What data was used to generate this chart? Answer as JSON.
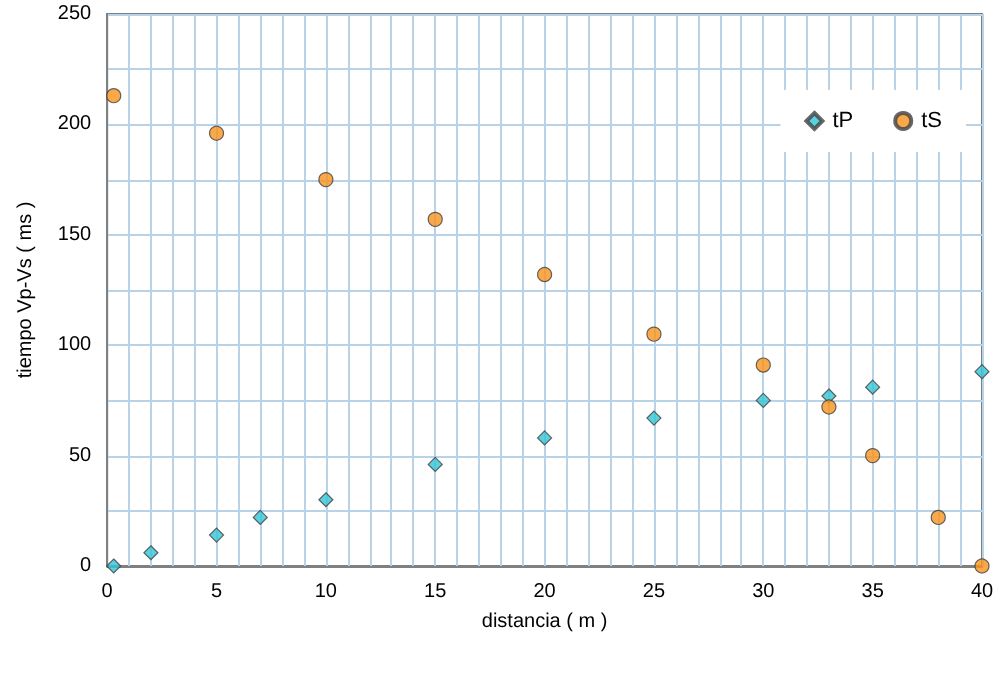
{
  "chart_data": {
    "type": "scatter",
    "xlabel": "distancia ( m )",
    "ylabel": "tiempo Vp-Vs ( ms )",
    "xlim": [
      0,
      40
    ],
    "ylim": [
      0,
      250
    ],
    "xticks": [
      0,
      {
        "value": 1,
        "label": null
      },
      {
        "value": 2,
        "label": null
      },
      {
        "value": 3,
        "label": null
      },
      {
        "value": 4,
        "label": null
      },
      5,
      {
        "value": 6,
        "label": null
      },
      {
        "value": 7,
        "label": null
      },
      {
        "value": 8,
        "label": null
      },
      {
        "value": 9,
        "label": null
      },
      10,
      {
        "value": 11,
        "label": null
      },
      {
        "value": 12,
        "label": null
      },
      {
        "value": 13,
        "label": null
      },
      {
        "value": 14,
        "label": null
      },
      15,
      {
        "value": 16,
        "label": null
      },
      {
        "value": 17,
        "label": null
      },
      {
        "value": 18,
        "label": null
      },
      {
        "value": 19,
        "label": null
      },
      20,
      {
        "value": 21,
        "label": null
      },
      {
        "value": 22,
        "label": null
      },
      {
        "value": 23,
        "label": null
      },
      {
        "value": 24,
        "label": null
      },
      25,
      {
        "value": 26,
        "label": null
      },
      {
        "value": 27,
        "label": null
      },
      {
        "value": 28,
        "label": null
      },
      {
        "value": 29,
        "label": null
      },
      30,
      {
        "value": 31,
        "label": null
      },
      {
        "value": 32,
        "label": null
      },
      {
        "value": 33,
        "label": null
      },
      {
        "value": 34,
        "label": null
      },
      35,
      {
        "value": 36,
        "label": null
      },
      {
        "value": 37,
        "label": null
      },
      {
        "value": 38,
        "label": null
      },
      {
        "value": 39,
        "label": null
      },
      40
    ],
    "yticks": [
      0,
      {
        "value": 25,
        "label": null
      },
      50,
      {
        "value": 75,
        "label": null
      },
      100,
      {
        "value": 125,
        "label": null
      },
      150,
      {
        "value": 175,
        "label": null
      },
      200,
      {
        "value": 225,
        "label": null
      },
      250
    ],
    "grid": true,
    "legend": "top right",
    "series": [
      {
        "name": "tP",
        "color": "#33c6d6",
        "marker": "diamond",
        "x": [
          0.3,
          2,
          5,
          7,
          10,
          15,
          20,
          25,
          30,
          33,
          35,
          40
        ],
        "values": [
          0,
          6,
          14,
          22,
          30,
          46,
          58,
          67,
          75,
          77,
          81,
          88
        ]
      },
      {
        "name": "tS",
        "color": "#f7941d",
        "marker": "circle",
        "x": [
          0.3,
          5,
          10,
          15,
          20,
          25,
          30,
          33,
          35,
          38,
          40
        ],
        "values": [
          213,
          196,
          175,
          157,
          132,
          105,
          91,
          72,
          50,
          22,
          0
        ]
      }
    ]
  }
}
